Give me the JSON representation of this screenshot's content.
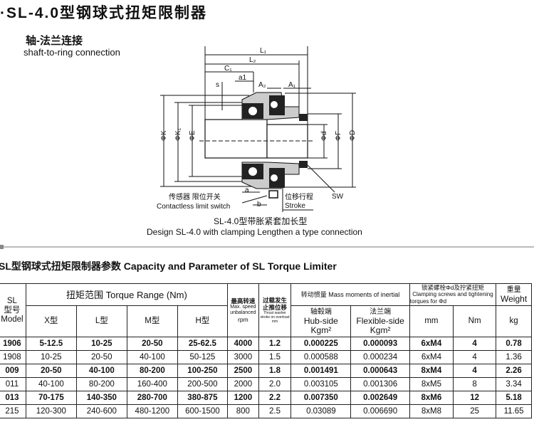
{
  "title": "·SL-4.0型钢球式扭矩限制器",
  "subtitle": {
    "cn": "轴-法兰连接",
    "en": "shaft-to-ring connection"
  },
  "diagram": {
    "labels": {
      "L1": "L₁",
      "L2": "L₂",
      "C1": "C₁",
      "a1": "a1",
      "A2": "A₂",
      "A1": "A₁",
      "s": "s",
      "phiK": "ΦK",
      "phiK1": "ΦK₁",
      "phiE": "ΦE",
      "phid": "Φd",
      "phiF": "ΦF",
      "phiD": "ΦD",
      "a": "a",
      "b": "b",
      "SW": "SW",
      "sensor_cn": "传感器  限位开关",
      "sensor_en": "Contactless limit switch",
      "stroke_cn": "位移行程",
      "stroke_en": "Stroke"
    },
    "caption_cn": "SL-4.0型带胀紧套加长型",
    "caption_en": "Design SL-4.0 with clamping Lengthen a type connection"
  },
  "table": {
    "title": "SL型钢球式扭矩限制器参数 Capacity and Parameter of SL Torque Limiter",
    "headers": {
      "model": [
        "SL",
        "型号",
        "Model"
      ],
      "torque_range": "扭矩范围   Torque Range (Nm)",
      "x": "X型",
      "l": "L型",
      "m": "M型",
      "h": "H型",
      "speed": [
        "最高转速",
        "Max. speed",
        "unbalanced",
        "rpm"
      ],
      "stroke": [
        "过载发生",
        "止推位移",
        "Thrust washer",
        "stroke on overload",
        "mm"
      ],
      "inertia": "转动惯量 Mass moments of inertial",
      "hub": [
        "轴毂端",
        "Hub-side",
        "Kgm²"
      ],
      "flex": [
        "法兰端",
        "Flexible-side",
        "Kgm²"
      ],
      "clamp": [
        "锁紧螺栓Φd及拧紧扭矩",
        "Clamping screws and tightening",
        "torques for Φd"
      ],
      "mm": "mm",
      "nm": "Nm",
      "weight": [
        "重量",
        "Weight"
      ],
      "kg": "kg"
    },
    "rows": [
      [
        "1906",
        "5-12.5",
        "10-25",
        "20-50",
        "25-62.5",
        "4000",
        "1.2",
        "0.000225",
        "0.000093",
        "6xM4",
        "4",
        "0.78"
      ],
      [
        "1908",
        "10-25",
        "20-50",
        "40-100",
        "50-125",
        "3000",
        "1.5",
        "0.000588",
        "0.000234",
        "6xM4",
        "4",
        "1.36"
      ],
      [
        "009",
        "20-50",
        "40-100",
        "80-200",
        "100-250",
        "2500",
        "1.8",
        "0.001491",
        "0.000643",
        "8xM4",
        "4",
        "2.26"
      ],
      [
        "011",
        "40-100",
        "80-200",
        "160-400",
        "200-500",
        "2000",
        "2.0",
        "0.003105",
        "0.001306",
        "8xM5",
        "8",
        "3.34"
      ],
      [
        "013",
        "70-175",
        "140-350",
        "280-700",
        "380-875",
        "1200",
        "2.2",
        "0.007350",
        "0.002649",
        "8xM6",
        "12",
        "5.18"
      ],
      [
        "215",
        "120-300",
        "240-600",
        "480-1200",
        "600-1500",
        "800",
        "2.5",
        "0.03089",
        "0.006690",
        "8xM8",
        "25",
        "11.65"
      ]
    ]
  }
}
